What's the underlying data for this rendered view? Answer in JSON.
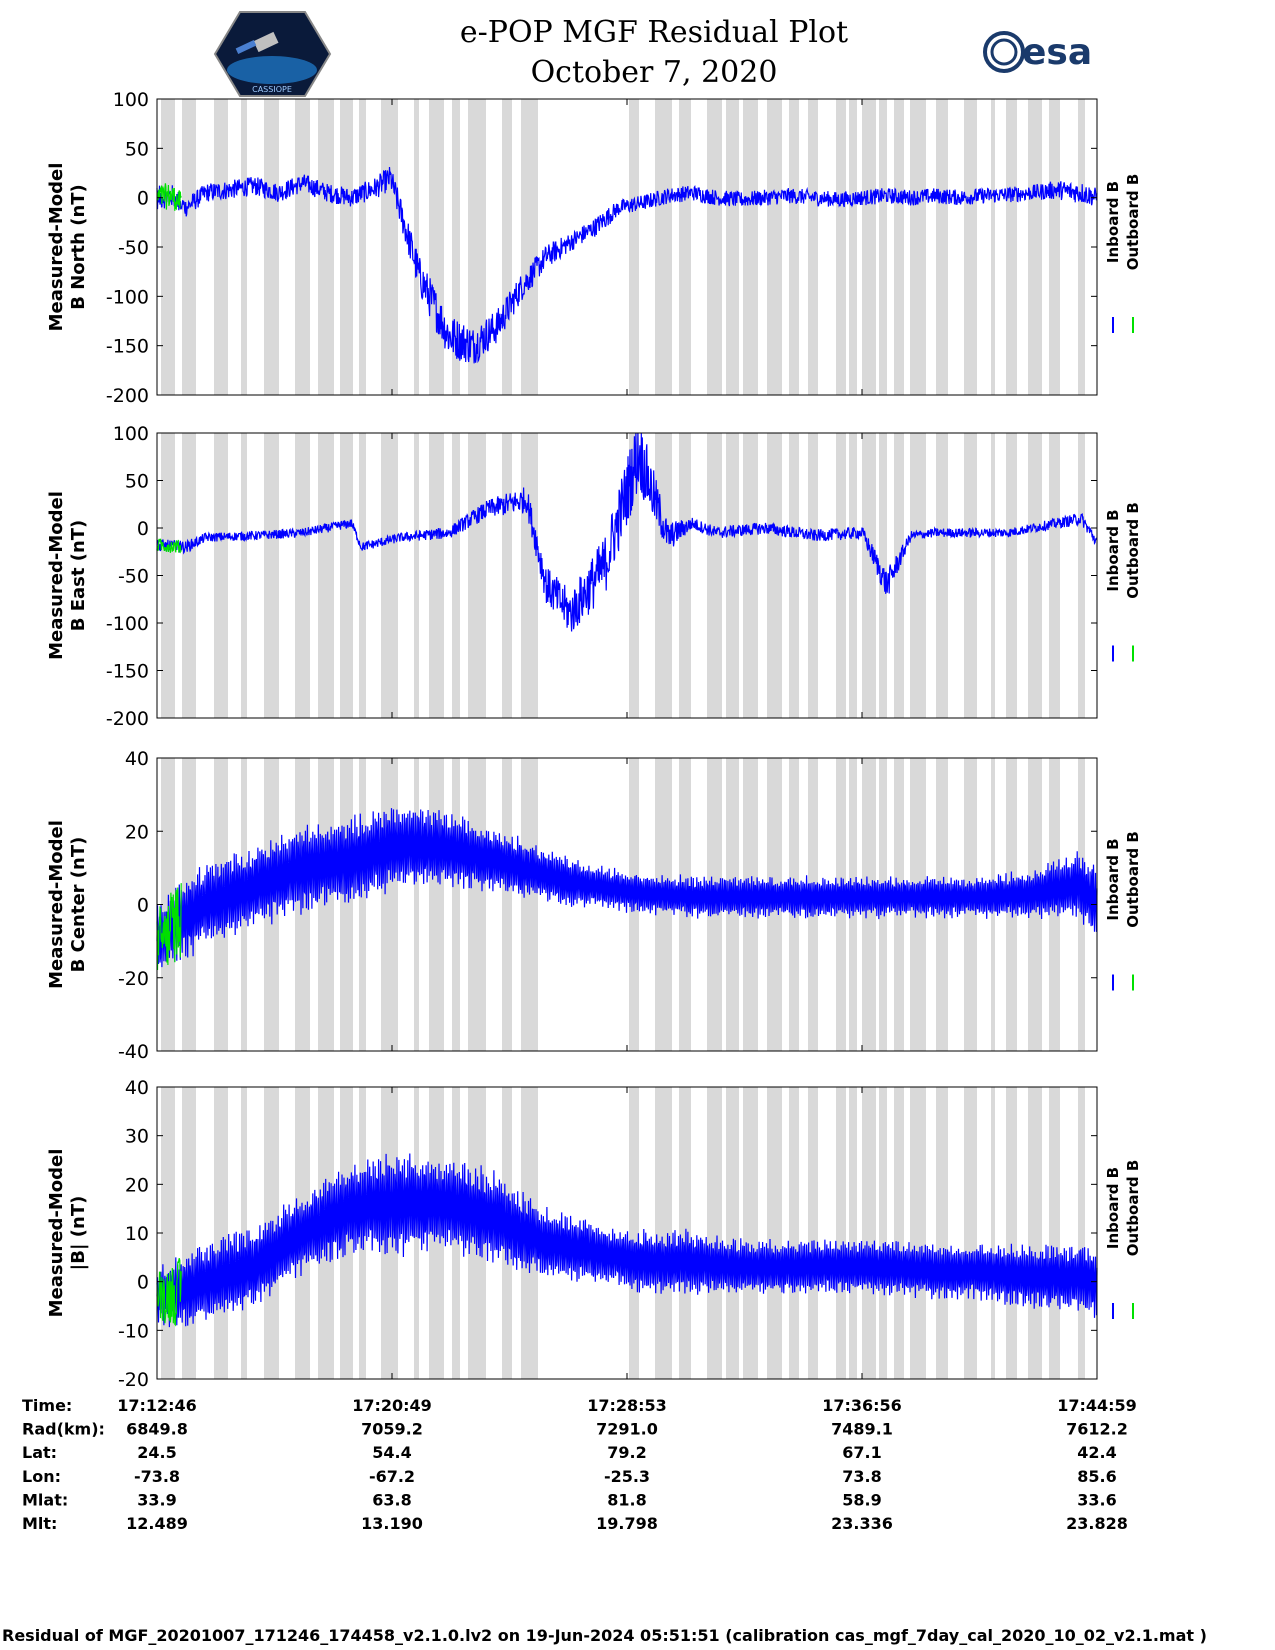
{
  "title_line1": "e-POP MGF Residual Plot",
  "title_line2": "October 7, 2020",
  "logos": {
    "left": "cassiope-mission-logo",
    "left_text": "CASSIOPE",
    "right": "esa-logo",
    "right_text": "esa"
  },
  "colors": {
    "inboard": "#0000ff",
    "outboard": "#00e000",
    "shade": "#d9d9d9"
  },
  "chart_data": [
    {
      "type": "line",
      "ylabel": [
        "Measured-Model",
        "B North (nT)"
      ],
      "ylim": [
        -200,
        100
      ],
      "yticks": [
        "100",
        "50",
        "0",
        "-50",
        "-100",
        "-150",
        "-200"
      ],
      "legend": [
        "Inboard B",
        "Outboard B"
      ],
      "x": [
        0,
        30,
        60,
        100,
        150,
        200,
        250,
        300,
        350,
        400,
        450,
        480,
        540,
        600,
        650,
        700,
        750,
        800,
        850,
        900,
        925,
        950,
        1000,
        1050,
        1100,
        1150,
        1200,
        1250,
        1300,
        1350,
        1400,
        1450,
        1500,
        1550,
        1600,
        1650,
        1700,
        1750,
        1800,
        1850,
        1900,
        1932
      ],
      "values": [
        0,
        2,
        -10,
        5,
        8,
        12,
        5,
        15,
        5,
        0,
        10,
        20,
        -80,
        -140,
        -150,
        -130,
        -90,
        -60,
        -45,
        -30,
        -20,
        -10,
        -5,
        2,
        5,
        0,
        -2,
        0,
        2,
        0,
        -2,
        0,
        2,
        0,
        2,
        0,
        2,
        3,
        5,
        8,
        5,
        0
      ],
      "amp": [
        15,
        15,
        12,
        12,
        12,
        12,
        12,
        12,
        12,
        12,
        14,
        16,
        25,
        28,
        25,
        22,
        18,
        15,
        12,
        12,
        12,
        10,
        10,
        10,
        10,
        10,
        10,
        10,
        10,
        10,
        10,
        10,
        10,
        10,
        10,
        10,
        10,
        10,
        10,
        12,
        14,
        12
      ]
    },
    {
      "type": "line",
      "ylabel": [
        "Measured-Model",
        "B East (nT)"
      ],
      "ylim": [
        -200,
        100
      ],
      "yticks": [
        "100",
        "50",
        "0",
        "-50",
        "-100",
        "-150",
        "-200"
      ],
      "legend": [
        "Inboard B",
        "Outboard B"
      ],
      "x": [
        0,
        60,
        100,
        200,
        300,
        400,
        420,
        500,
        600,
        680,
        760,
        800,
        850,
        920,
        990,
        1050,
        1100,
        1150,
        1250,
        1350,
        1450,
        1500,
        1550,
        1600,
        1650,
        1700,
        1750,
        1800,
        1900,
        1932
      ],
      "values": [
        -18,
        -20,
        -10,
        -8,
        -5,
        5,
        -20,
        -10,
        -5,
        20,
        30,
        -60,
        -90,
        -40,
        80,
        -10,
        5,
        -5,
        0,
        -8,
        -5,
        -60,
        -8,
        -5,
        -5,
        -5,
        -5,
        0,
        10,
        -15
      ],
      "amp": [
        8,
        8,
        6,
        6,
        6,
        6,
        6,
        6,
        8,
        12,
        18,
        25,
        30,
        40,
        50,
        20,
        8,
        8,
        8,
        8,
        8,
        20,
        6,
        6,
        6,
        6,
        6,
        6,
        8,
        8
      ]
    },
    {
      "type": "line",
      "ylabel": [
        "Measured-Model",
        "B Center (nT)"
      ],
      "ylim": [
        -40,
        40
      ],
      "yticks": [
        "40",
        "20",
        "0",
        "-20",
        "-40"
      ],
      "legend": [
        "Inboard B",
        "Outboard B"
      ],
      "x": [
        0,
        40,
        100,
        200,
        300,
        400,
        500,
        600,
        700,
        800,
        850,
        900,
        950,
        1000,
        1100,
        1200,
        1300,
        1400,
        1500,
        1600,
        1700,
        1800,
        1900,
        1932
      ],
      "values": [
        -10,
        -5,
        0,
        5,
        10,
        12,
        16,
        15,
        12,
        8,
        6,
        5,
        4,
        3,
        2,
        2,
        2,
        2,
        2,
        2,
        2,
        3,
        5,
        0
      ],
      "amp": [
        10,
        12,
        12,
        12,
        13,
        13,
        12,
        11,
        9,
        8,
        7,
        6,
        6,
        6,
        6,
        6,
        6,
        6,
        6,
        6,
        6,
        7,
        10,
        12
      ]
    },
    {
      "type": "line",
      "ylabel": [
        "Measured-Model",
        "|B| (nT)"
      ],
      "ylim": [
        -20,
        40
      ],
      "yticks": [
        "40",
        "30",
        "20",
        "10",
        "0",
        "-10",
        "-20"
      ],
      "legend": [
        "Inboard B",
        "Outboard B"
      ],
      "x": [
        0,
        50,
        100,
        200,
        300,
        400,
        500,
        600,
        700,
        750,
        800,
        900,
        950,
        1000,
        1100,
        1200,
        1300,
        1400,
        1500,
        1600,
        1700,
        1800,
        1900,
        1932
      ],
      "values": [
        -3,
        -2,
        0,
        3,
        10,
        15,
        16,
        16,
        13,
        10,
        8,
        6,
        5,
        4,
        4,
        3,
        3,
        3,
        3,
        2,
        2,
        1,
        1,
        0
      ],
      "amp": [
        6,
        8,
        9,
        9,
        9,
        10,
        11,
        11,
        10,
        9,
        8,
        7,
        6,
        7,
        7,
        6,
        6,
        6,
        6,
        6,
        6,
        7,
        8,
        8
      ]
    }
  ],
  "rows": [
    {
      "label": "Time:",
      "values": [
        "17:12:46",
        "17:20:49",
        "17:28:53",
        "17:36:56",
        "17:44:59"
      ]
    },
    {
      "label": "Rad(km):",
      "values": [
        "6849.8",
        "7059.2",
        "7291.0",
        "7489.1",
        "7612.2"
      ]
    },
    {
      "label": "Lat:",
      "values": [
        "24.5",
        "54.4",
        "79.2",
        "67.1",
        "42.4"
      ]
    },
    {
      "label": "Lon:",
      "values": [
        "-73.8",
        "-67.2",
        "-25.3",
        "73.8",
        "85.6"
      ]
    },
    {
      "label": "Mlat:",
      "values": [
        "33.9",
        "63.8",
        "81.8",
        "58.9",
        "33.6"
      ]
    },
    {
      "label": "Mlt:",
      "values": [
        "12.489",
        "13.190",
        "19.798",
        "23.336",
        "23.828"
      ]
    }
  ],
  "footer": "Residual of MGF_20201007_171246_174458_v2.1.0.lv2 on 19-Jun-2024 05:51:51 (calibration cas_mgf_7day_cal_2020_10_02_v2.1.mat )"
}
